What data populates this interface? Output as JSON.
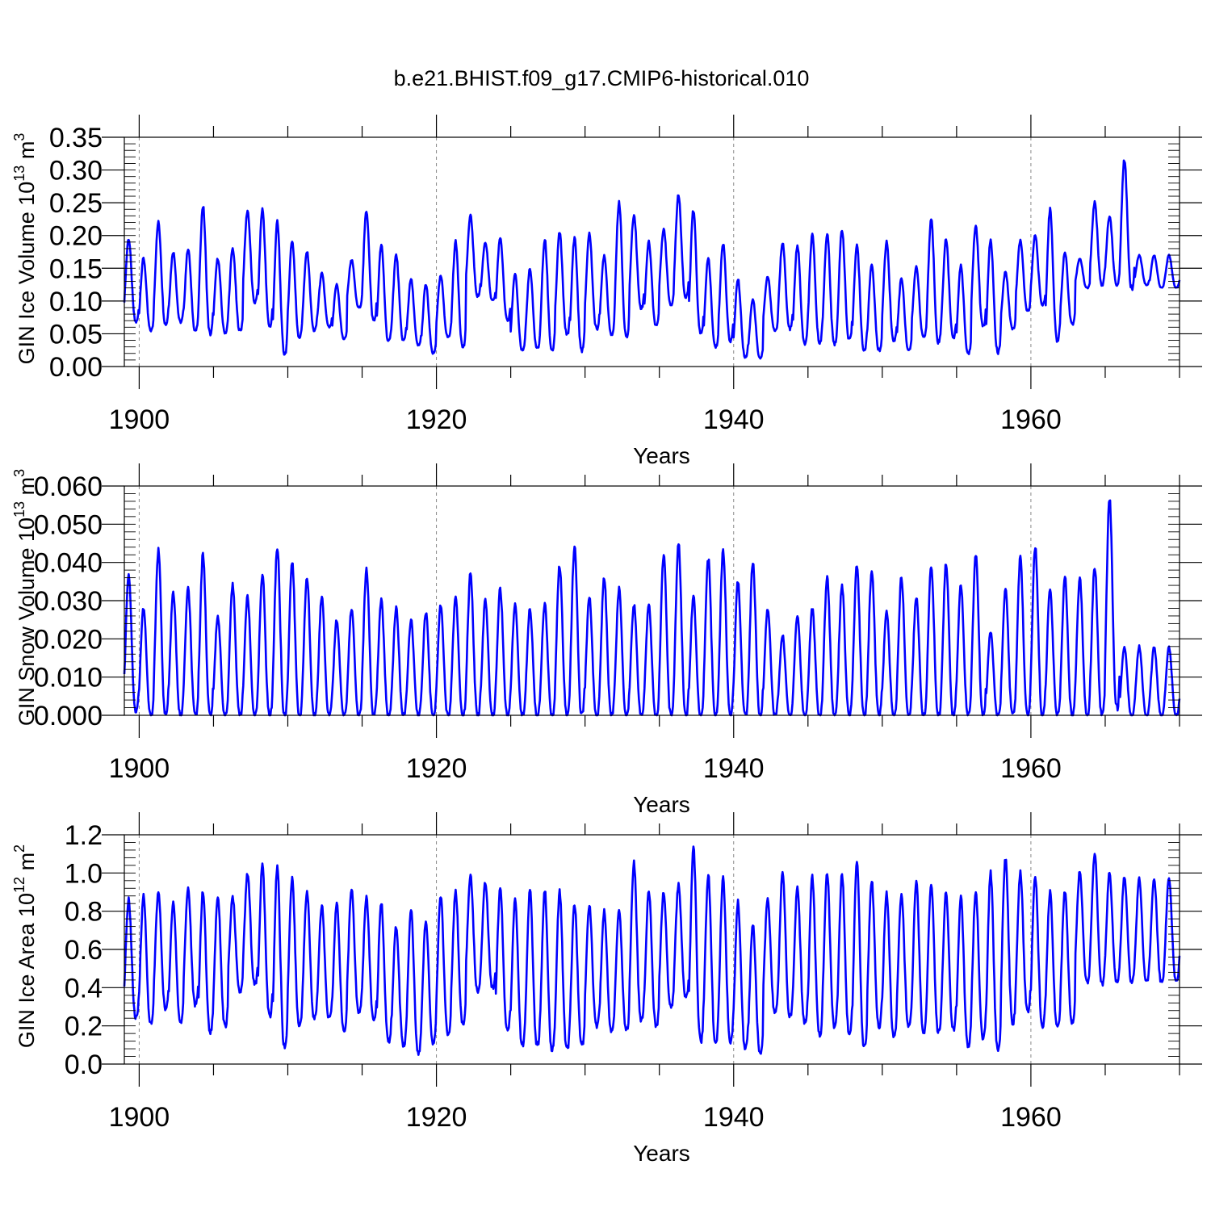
{
  "figure_title": "b.e21.BHIST.f09_g17.CMIP6-historical.010",
  "colors": {
    "line": "#0000ff",
    "axis": "#000000",
    "grid": "#888888",
    "background": "#ffffff"
  },
  "chart_data": [
    {
      "type": "line",
      "id": "ice-volume",
      "title": "",
      "xlabel": "Years",
      "ylabel": {
        "main": "GIN Ice Volume 10",
        "sup": "13",
        "tail": " m",
        "sup2": "3"
      },
      "xlim": [
        1899,
        1970
      ],
      "ylim": [
        0,
        0.35
      ],
      "x_major_ticks": [
        1900,
        1920,
        1940,
        1960
      ],
      "x_tick_labels": [
        "1900",
        "1920",
        "1940",
        "1960"
      ],
      "y_major_ticks": [
        0.0,
        0.05,
        0.1,
        0.15,
        0.2,
        0.25,
        0.3,
        0.35
      ],
      "y_tick_labels": [
        "0.00",
        "0.05",
        "0.10",
        "0.15",
        "0.20",
        "0.25",
        "0.30",
        "0.35"
      ],
      "series": [
        {
          "name": "GIN Ice Volume",
          "annual_max": [
            0.195,
            0.165,
            0.22,
            0.175,
            0.18,
            0.245,
            0.165,
            0.18,
            0.238,
            0.24,
            0.22,
            0.192,
            0.175,
            0.142,
            0.125,
            0.163,
            0.238,
            0.185,
            0.17,
            0.133,
            0.125,
            0.138,
            0.19,
            0.23,
            0.19,
            0.197,
            0.14,
            0.148,
            0.193,
            0.205,
            0.197,
            0.203,
            0.17,
            0.252,
            0.232,
            0.19,
            0.21,
            0.262,
            0.238,
            0.165,
            0.188,
            0.133,
            0.103,
            0.137,
            0.19,
            0.185,
            0.2,
            0.203,
            0.21,
            0.185,
            0.156,
            0.19,
            0.135,
            0.152,
            0.225,
            0.195,
            0.153,
            0.215,
            0.193,
            0.145,
            0.193,
            0.2,
            0.24,
            0.175,
            0.165,
            0.25,
            0.23,
            0.315,
            0.17,
            0.17
          ],
          "annual_min": [
            0.068,
            0.055,
            0.065,
            0.068,
            0.055,
            0.05,
            0.052,
            0.055,
            0.098,
            0.062,
            0.02,
            0.045,
            0.055,
            0.06,
            0.042,
            0.09,
            0.07,
            0.038,
            0.04,
            0.032,
            0.02,
            0.045,
            0.03,
            0.108,
            0.1,
            0.072,
            0.025,
            0.028,
            0.025,
            0.05,
            0.025,
            0.058,
            0.05,
            0.045,
            0.09,
            0.063,
            0.095,
            0.105,
            0.05,
            0.03,
            0.04,
            0.015,
            0.013,
            0.055,
            0.058,
            0.035,
            0.038,
            0.035,
            0.04,
            0.025,
            0.025,
            0.04,
            0.025,
            0.045,
            0.038,
            0.045,
            0.02,
            0.062,
            0.022,
            0.058,
            0.085,
            0.095,
            0.04,
            0.065,
            0.12,
            0.125,
            0.125,
            0.12,
            0.125,
            0.12
          ]
        }
      ]
    },
    {
      "type": "line",
      "id": "snow-volume",
      "title": "",
      "xlabel": "Years",
      "ylabel": {
        "main": "GIN Snow Volume 10",
        "sup": "13",
        "tail": " m",
        "sup2": "3"
      },
      "xlim": [
        1899,
        1970
      ],
      "ylim": [
        0,
        0.06
      ],
      "x_major_ticks": [
        1900,
        1920,
        1940,
        1960
      ],
      "x_tick_labels": [
        "1900",
        "1920",
        "1940",
        "1960"
      ],
      "y_major_ticks": [
        0.0,
        0.01,
        0.02,
        0.03,
        0.04,
        0.05,
        0.06
      ],
      "y_tick_labels": [
        "0.000",
        "0.010",
        "0.020",
        "0.030",
        "0.040",
        "0.050",
        "0.060"
      ],
      "series": [
        {
          "name": "GIN Snow Volume",
          "annual_max": [
            0.037,
            0.028,
            0.043,
            0.032,
            0.033,
            0.042,
            0.026,
            0.034,
            0.031,
            0.037,
            0.044,
            0.04,
            0.036,
            0.031,
            0.025,
            0.028,
            0.038,
            0.03,
            0.028,
            0.025,
            0.027,
            0.029,
            0.031,
            0.037,
            0.03,
            0.033,
            0.029,
            0.028,
            0.029,
            0.039,
            0.044,
            0.031,
            0.036,
            0.033,
            0.029,
            0.029,
            0.042,
            0.045,
            0.031,
            0.041,
            0.043,
            0.035,
            0.04,
            0.028,
            0.021,
            0.026,
            0.028,
            0.036,
            0.034,
            0.039,
            0.038,
            0.027,
            0.036,
            0.031,
            0.039,
            0.04,
            0.034,
            0.042,
            0.022,
            0.033,
            0.041,
            0.044,
            0.033,
            0.036,
            0.036,
            0.039,
            0.057,
            0.018,
            0.018,
            0.018
          ],
          "annual_min": [
            0.001,
            0.0,
            0.0,
            0.0,
            0.0,
            0.0,
            0.0,
            0.0,
            0.0,
            0.0,
            0.0,
            0.0,
            0.0,
            0.0,
            0.0,
            0.0,
            0.0,
            0.0,
            0.0,
            0.0,
            0.0,
            0.0,
            0.0,
            0.0,
            0.0,
            0.0,
            0.0,
            0.0,
            0.0,
            0.0,
            0.0,
            0.0,
            0.0,
            0.0,
            0.0,
            0.0,
            0.0,
            0.0,
            0.0,
            0.0,
            0.0,
            0.0,
            0.0,
            0.0,
            0.0,
            0.0,
            0.0,
            0.0,
            0.0,
            0.0,
            0.0,
            0.0,
            0.0,
            0.0,
            0.0,
            0.0,
            0.0,
            0.0,
            0.0,
            0.0,
            0.0,
            0.0,
            0.0,
            0.0,
            0.0,
            0.0,
            0.002,
            0.0,
            0.0,
            0.0
          ]
        }
      ]
    },
    {
      "type": "line",
      "id": "ice-area",
      "title": "",
      "xlabel": "Years",
      "ylabel": {
        "main": "GIN Ice Area 10",
        "sup": "12",
        "tail": " m",
        "sup2": "2"
      },
      "xlim": [
        1899,
        1970
      ],
      "ylim": [
        0,
        1.2
      ],
      "x_major_ticks": [
        1900,
        1920,
        1940,
        1960
      ],
      "x_tick_labels": [
        "1900",
        "1920",
        "1940",
        "1960"
      ],
      "y_major_ticks": [
        0.0,
        0.2,
        0.4,
        0.6,
        0.8,
        1.0,
        1.2
      ],
      "y_tick_labels": [
        "0.0",
        "0.2",
        "0.4",
        "0.6",
        "0.8",
        "1.0",
        "1.2"
      ],
      "series": [
        {
          "name": "GIN Ice Area",
          "annual_max": [
            0.86,
            0.88,
            0.9,
            0.85,
            0.92,
            0.9,
            0.88,
            0.87,
            1.0,
            1.04,
            1.03,
            0.97,
            0.9,
            0.83,
            0.84,
            0.91,
            0.87,
            0.84,
            0.72,
            0.81,
            0.75,
            0.88,
            0.9,
            0.99,
            0.95,
            0.92,
            0.86,
            0.91,
            0.91,
            0.9,
            0.84,
            0.83,
            0.8,
            0.8,
            1.05,
            0.91,
            0.9,
            0.94,
            1.14,
            0.99,
            0.97,
            0.85,
            0.73,
            0.86,
            1.0,
            0.92,
            0.98,
            1.0,
            0.99,
            1.05,
            0.96,
            0.89,
            0.89,
            0.95,
            0.95,
            0.9,
            0.87,
            0.9,
            1.0,
            1.08,
            1.0,
            0.98,
            0.9,
            0.9,
            1.01,
            1.1,
            1.0,
            0.98,
            0.97,
            0.97
          ],
          "annual_min": [
            0.24,
            0.21,
            0.29,
            0.22,
            0.31,
            0.17,
            0.2,
            0.38,
            0.42,
            0.25,
            0.09,
            0.2,
            0.24,
            0.24,
            0.18,
            0.27,
            0.24,
            0.12,
            0.1,
            0.06,
            0.11,
            0.16,
            0.21,
            0.38,
            0.4,
            0.18,
            0.1,
            0.1,
            0.08,
            0.08,
            0.1,
            0.2,
            0.17,
            0.18,
            0.23,
            0.2,
            0.3,
            0.35,
            0.12,
            0.12,
            0.12,
            0.08,
            0.06,
            0.27,
            0.25,
            0.22,
            0.15,
            0.2,
            0.16,
            0.08,
            0.2,
            0.15,
            0.2,
            0.16,
            0.17,
            0.18,
            0.1,
            0.14,
            0.08,
            0.22,
            0.28,
            0.2,
            0.19,
            0.22,
            0.43,
            0.42,
            0.43,
            0.43,
            0.43,
            0.43
          ]
        }
      ]
    }
  ]
}
